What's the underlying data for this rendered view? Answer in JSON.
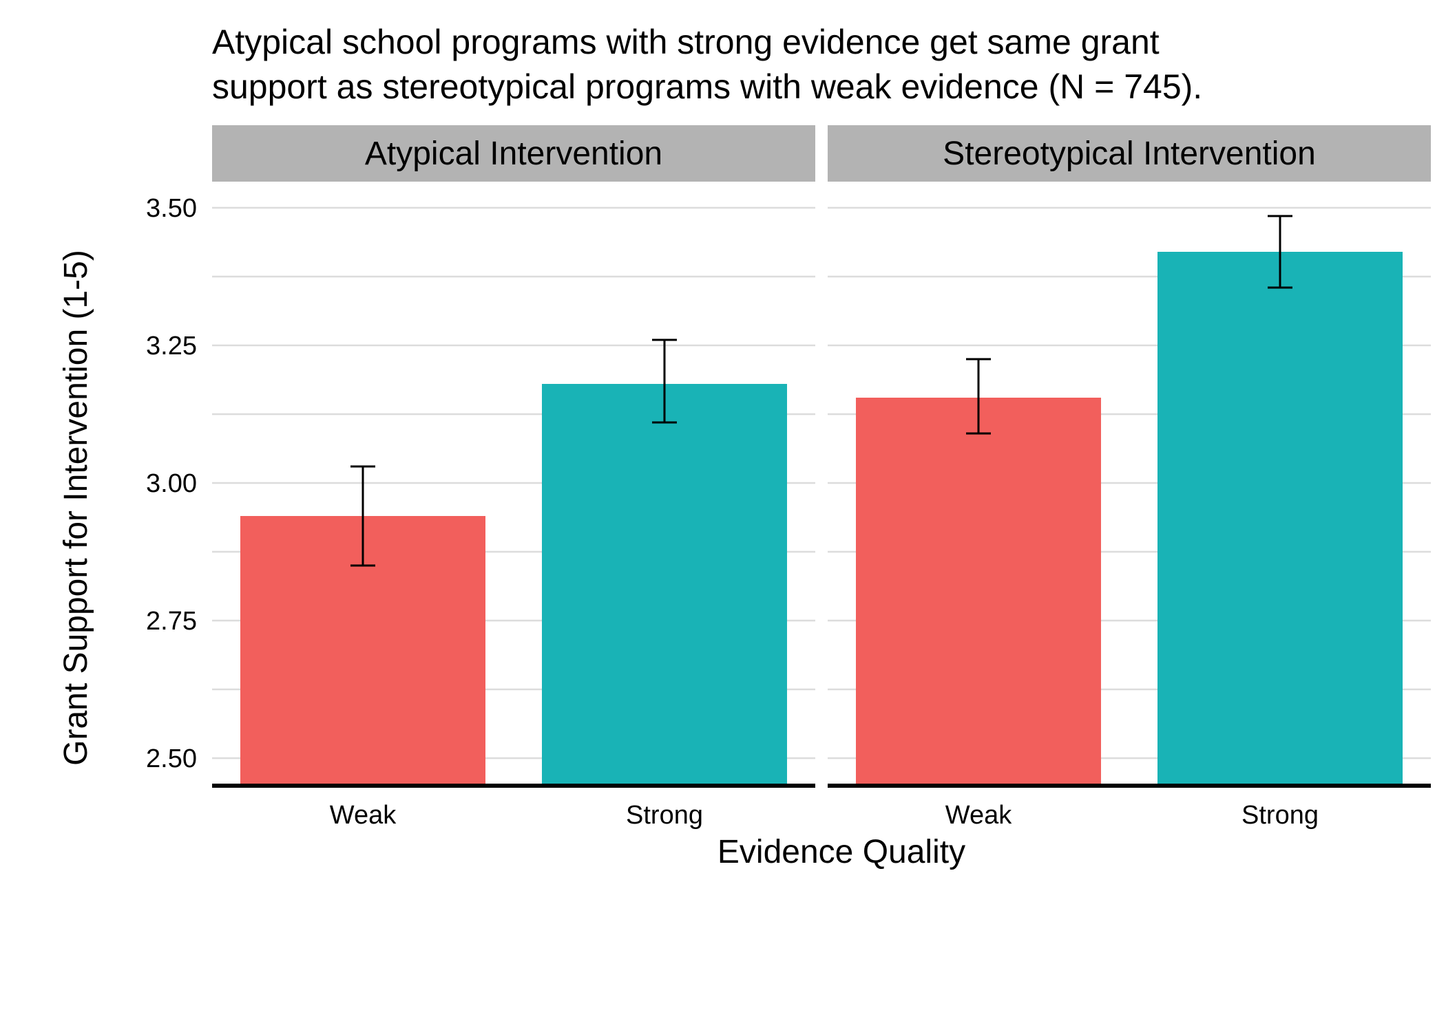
{
  "chart_data": {
    "type": "bar",
    "title_lines": [
      "Atypical school programs with strong evidence get same grant",
      "support as stereotypical programs with weak evidence (N = 745)."
    ],
    "xlabel": "Evidence Quality",
    "ylabel": "Grant Support for Intervention (1-5)",
    "ylim": [
      2.45,
      3.55
    ],
    "yticks": [
      2.5,
      2.75,
      3.0,
      3.25,
      3.5
    ],
    "ytick_labels": [
      "2.50",
      "2.75",
      "3.00",
      "3.25",
      "3.50"
    ],
    "grid": true,
    "categories": [
      "Weak",
      "Strong"
    ],
    "colors": {
      "Weak": "#F25F5C",
      "Strong": "#19B3B6"
    },
    "panels": [
      {
        "name": "Atypical Intervention",
        "values": [
          2.94,
          3.18
        ],
        "error_low": [
          2.85,
          3.11
        ],
        "error_high": [
          3.03,
          3.26
        ]
      },
      {
        "name": "Stereotypical Intervention",
        "values": [
          3.155,
          3.42
        ],
        "error_low": [
          3.09,
          3.355
        ],
        "error_high": [
          3.225,
          3.485
        ]
      }
    ]
  },
  "style": {
    "strip_fill": "#B3B3B3",
    "grid_color": "#DCDCDC",
    "axis_color": "#000000"
  }
}
